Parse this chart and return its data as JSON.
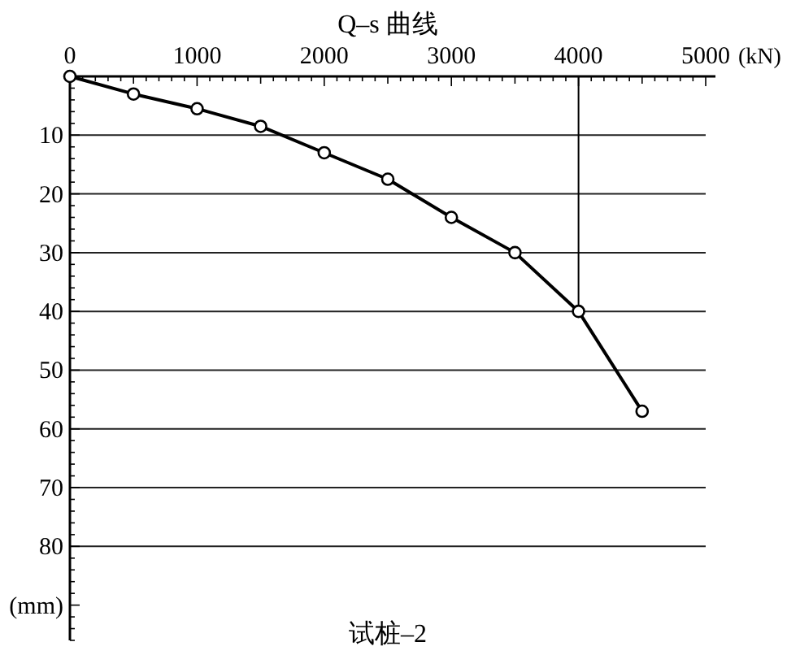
{
  "chart_data": {
    "type": "line",
    "title": "Q–s 曲线",
    "xlabel": "(kN)",
    "annotations": [
      "试桩–2"
    ],
    "x": [
      0,
      500,
      1000,
      1500,
      2000,
      2500,
      3000,
      3500,
      4000,
      4500
    ],
    "series": [
      {
        "color": "#000000",
        "values": [
          0,
          3,
          5.5,
          8.5,
          13,
          17.5,
          24,
          30,
          40,
          57
        ]
      }
    ],
    "xlim": [
      0,
      5000
    ],
    "ylim": [
      96,
      0
    ],
    "xticks": [
      0,
      1000,
      2000,
      3000,
      4000,
      5000
    ],
    "yticks": [
      10,
      20,
      30,
      40,
      50,
      60,
      70,
      80,
      {
        "value": 90,
        "label": "(mm)"
      }
    ],
    "grid": "y",
    "marker": "circle",
    "line_style": "solid",
    "ref_lines": [
      {
        "axis": "x",
        "value": 4000
      }
    ]
  }
}
